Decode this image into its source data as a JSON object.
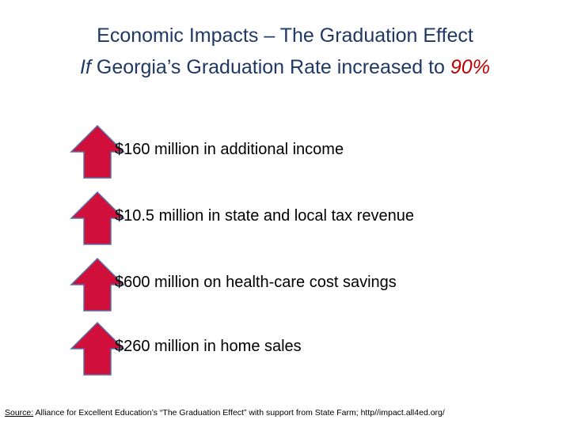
{
  "title": {
    "line1": "Economic Impacts – The Graduation Effect",
    "line2_if": "If",
    "line2_middle": " Georgia’s Graduation Rate increased to ",
    "line2_value": "90%"
  },
  "impacts": [
    {
      "icon": "up-arrow-icon",
      "text": "$160 million in additional income"
    },
    {
      "icon": "up-arrow-icon",
      "text": "$10.5 million in state and local tax revenue"
    },
    {
      "icon": "up-arrow-icon",
      "text": "$600 million on health-care cost savings"
    },
    {
      "icon": "up-arrow-icon",
      "text": "$260 million in home sales"
    }
  ],
  "source": {
    "label": "Source:",
    "text": " Alliance for Excellent Education’s “The Graduation Effect” with support from State Farm; http//impact.all4ed.org/"
  },
  "colors": {
    "title": "#1f3864",
    "accent": "#c00000",
    "arrow_fill": "#d0103a",
    "arrow_stroke": "#5a6fa8"
  }
}
